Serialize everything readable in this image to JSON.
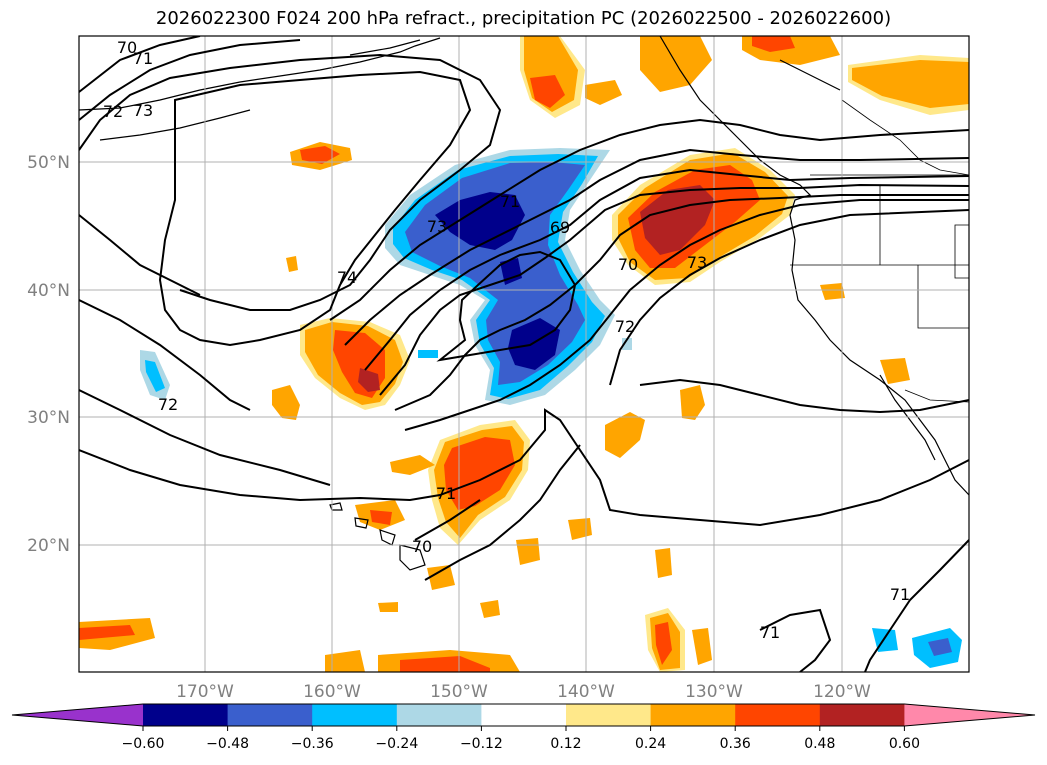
{
  "title": "2026022300 F024 200 hPa refract., precipitation PC (2026022500 - 2026022600)",
  "lat_labels": [
    "50°N",
    "40°N",
    "30°N",
    "20°N"
  ],
  "lon_labels": [
    "170°W",
    "160°W",
    "150°W",
    "140°W",
    "130°W",
    "120°W"
  ],
  "contour_labels": [
    "70",
    "71",
    "72",
    "73",
    "74",
    "73",
    "71",
    "69",
    "70",
    "73",
    "72",
    "72",
    "71",
    "70",
    "71",
    "71"
  ],
  "colorbar": {
    "ticks": [
      "−0.60",
      "−0.48",
      "−0.36",
      "−0.24",
      "−0.12",
      "0.12",
      "0.24",
      "0.36",
      "0.48",
      "0.60"
    ],
    "colors": [
      "#9932cc",
      "#00008b",
      "#3a5fcd",
      "#00bfff",
      "#add8e6",
      "#ffffff",
      "#ffe88a",
      "#ffa500",
      "#ff4500",
      "#b22222",
      "#ff88aa"
    ]
  }
}
